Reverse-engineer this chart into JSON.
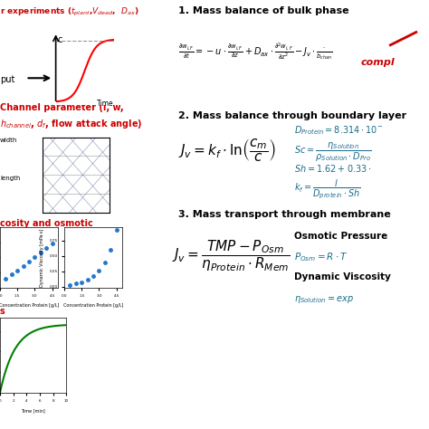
{
  "bg_color": "#ffffff",
  "black_color": "#000000",
  "blue_color": "#1a6b8a",
  "red_color": "#cc0000",
  "figsize": [
    4.74,
    4.74
  ],
  "dpi": 100,
  "top_red_text": "r experiments ($t_{plant}$,$V_{dead}$,  $D_{ax}$)",
  "section1_title": "1. Mass balance of bulk phase",
  "compl_text": "compl",
  "section2_title": "2. Mass balance through boundary layer",
  "channel_line1": "Channel parameter (l, w,",
  "channel_line2": "$h_{channel}$, $d_f$, flow attack angle)",
  "width_label": "width",
  "length_label": "length",
  "viscosity_text": "cosity and osmotic",
  "section3_title": "3. Mass transport through membrane",
  "osm_pressure_label": "Osmotic Pressure",
  "osm_eq": "$P_{Osm} = R \\cdot T$",
  "dyn_visc_label": "Dynamic Viscosity",
  "eta_eq": "$\\eta_{Solution} = exp$",
  "s_label": "s",
  "out_label": "put"
}
